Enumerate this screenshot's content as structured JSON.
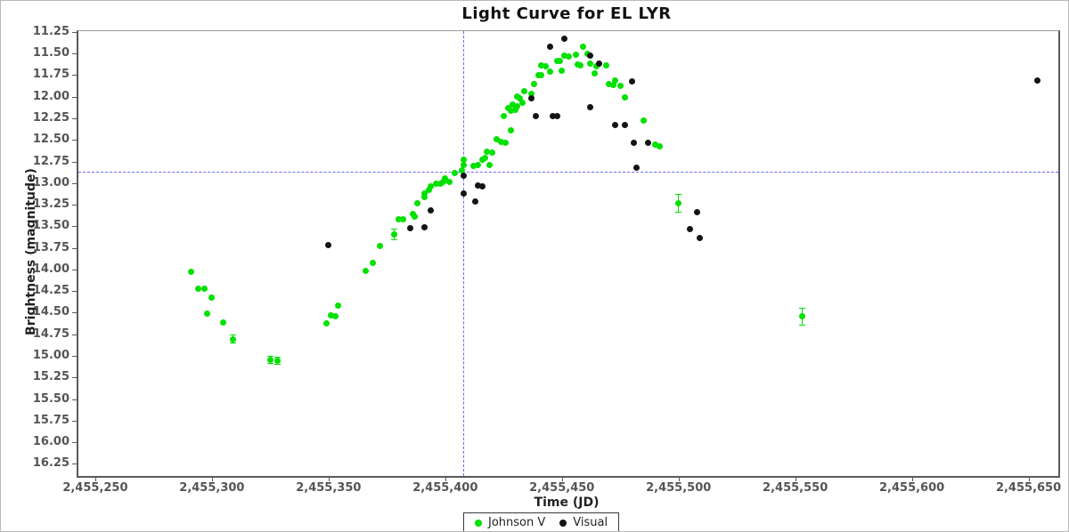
{
  "title": "Light Curve for EL LYR",
  "axes": {
    "x_label": "Time (JD)",
    "y_label": "Brightness (magnitude)"
  },
  "legend": {
    "items": [
      {
        "label": "Johnson V",
        "color": "#00e100",
        "marker": "circle-icon"
      },
      {
        "label": "Visual",
        "color": "#141414",
        "marker": "circle-icon"
      }
    ]
  },
  "crosshair": {
    "jd": 2455407,
    "mag": 12.86,
    "color": "#6a6aff"
  },
  "chart_data": {
    "type": "scatter",
    "title": "Light Curve for EL LYR",
    "xlabel": "Time (JD)",
    "ylabel": "Brightness (magnitude)",
    "x_range": [
      2455242,
      2455662
    ],
    "y_range": [
      11.23,
      16.38
    ],
    "y_axis_direction": "inverted (magnitude increases downward, brighter at top)",
    "grid": false,
    "legend_position": "bottom-center",
    "x_ticks": [
      {
        "v": 2455250,
        "label": "2,455,250"
      },
      {
        "v": 2455300,
        "label": "2,455,300"
      },
      {
        "v": 2455350,
        "label": "2,455,350"
      },
      {
        "v": 2455400,
        "label": "2,455,400"
      },
      {
        "v": 2455450,
        "label": "2,455,450"
      },
      {
        "v": 2455500,
        "label": "2,455,500"
      },
      {
        "v": 2455550,
        "label": "2,455,550"
      },
      {
        "v": 2455600,
        "label": "2,455,600"
      },
      {
        "v": 2455650,
        "label": "2,455,650"
      }
    ],
    "y_ticks": [
      {
        "v": 11.25,
        "label": "11.25"
      },
      {
        "v": 11.5,
        "label": "11.50"
      },
      {
        "v": 11.75,
        "label": "11.75"
      },
      {
        "v": 12.0,
        "label": "12.00"
      },
      {
        "v": 12.25,
        "label": "12.25"
      },
      {
        "v": 12.5,
        "label": "12.50"
      },
      {
        "v": 12.75,
        "label": "12.75"
      },
      {
        "v": 13.0,
        "label": "13.00"
      },
      {
        "v": 13.25,
        "label": "13.25"
      },
      {
        "v": 13.5,
        "label": "13.50"
      },
      {
        "v": 13.75,
        "label": "13.75"
      },
      {
        "v": 14.0,
        "label": "14.00"
      },
      {
        "v": 14.25,
        "label": "14.25"
      },
      {
        "v": 14.5,
        "label": "14.50"
      },
      {
        "v": 14.75,
        "label": "14.75"
      },
      {
        "v": 15.0,
        "label": "15.00"
      },
      {
        "v": 15.25,
        "label": "15.25"
      },
      {
        "v": 15.5,
        "label": "15.50"
      },
      {
        "v": 15.75,
        "label": "15.75"
      },
      {
        "v": 16.0,
        "label": "16.00"
      },
      {
        "v": 16.25,
        "label": "16.25"
      }
    ],
    "series": [
      {
        "name": "Johnson V",
        "color": "#00e100",
        "points": [
          [
            2455290,
            14.01
          ],
          [
            2455293,
            14.21
          ],
          [
            2455296,
            14.21
          ],
          [
            2455299,
            14.31
          ],
          [
            2455297,
            14.49
          ],
          [
            2455304,
            14.6
          ],
          [
            2455308,
            14.79,
            0.05
          ],
          [
            2455324,
            15.03,
            0.04
          ],
          [
            2455327,
            15.04,
            0.04
          ],
          [
            2455348,
            14.61
          ],
          [
            2455350,
            14.52
          ],
          [
            2455352,
            14.53
          ],
          [
            2455353,
            14.4
          ],
          [
            2455365,
            14.0
          ],
          [
            2455368,
            13.91
          ],
          [
            2455371,
            13.71
          ],
          [
            2455377,
            13.58,
            0.06
          ],
          [
            2455379,
            13.4
          ],
          [
            2455381,
            13.4
          ],
          [
            2455385,
            13.34
          ],
          [
            2455386,
            13.37
          ],
          [
            2455387,
            13.22
          ],
          [
            2455390,
            13.1
          ],
          [
            2455390,
            13.15
          ],
          [
            2455392,
            13.06
          ],
          [
            2455393,
            13.02
          ],
          [
            2455395,
            12.99
          ],
          [
            2455397,
            12.99
          ],
          [
            2455398,
            12.97
          ],
          [
            2455399,
            12.93
          ],
          [
            2455401,
            12.97
          ],
          [
            2455403,
            12.87
          ],
          [
            2455406,
            12.84
          ],
          [
            2455407,
            12.78
          ],
          [
            2455407,
            12.71
          ],
          [
            2455411,
            12.79
          ],
          [
            2455413,
            12.77
          ],
          [
            2455415,
            12.71
          ],
          [
            2455416,
            12.69
          ],
          [
            2455417,
            12.62
          ],
          [
            2455418,
            12.77
          ],
          [
            2455419,
            12.63
          ],
          [
            2455421,
            12.48
          ],
          [
            2455423,
            12.51
          ],
          [
            2455425,
            12.52
          ],
          [
            2455424,
            12.21
          ],
          [
            2455427,
            12.37
          ],
          [
            2455426,
            12.12
          ],
          [
            2455427,
            12.15
          ],
          [
            2455428,
            12.07
          ],
          [
            2455429,
            12.14
          ],
          [
            2455430,
            12.1
          ],
          [
            2455432,
            12.05
          ],
          [
            2455430,
            11.98
          ],
          [
            2455431,
            12.0
          ],
          [
            2455433,
            11.92
          ],
          [
            2455436,
            11.95
          ],
          [
            2455437,
            11.84
          ],
          [
            2455439,
            11.73
          ],
          [
            2455440,
            11.62
          ],
          [
            2455440,
            11.73
          ],
          [
            2455442,
            11.63
          ],
          [
            2455444,
            11.69
          ],
          [
            2455447,
            11.57
          ],
          [
            2455448,
            11.57
          ],
          [
            2455449,
            11.68
          ],
          [
            2455450,
            11.51
          ],
          [
            2455452,
            11.52
          ],
          [
            2455455,
            11.5
          ],
          [
            2455456,
            11.61
          ],
          [
            2455457,
            11.62
          ],
          [
            2455458,
            11.4
          ],
          [
            2455460,
            11.49
          ],
          [
            2455461,
            11.6
          ],
          [
            2455463,
            11.71
          ],
          [
            2455464,
            11.63
          ],
          [
            2455468,
            11.62
          ],
          [
            2455469,
            11.84
          ],
          [
            2455471,
            11.85
          ],
          [
            2455472,
            11.8
          ],
          [
            2455474,
            11.86
          ],
          [
            2455476,
            11.99
          ],
          [
            2455484,
            12.26
          ],
          [
            2455489,
            12.54
          ],
          [
            2455491,
            12.56
          ],
          [
            2455499,
            13.22,
            0.1
          ],
          [
            2455552,
            14.53,
            0.1
          ]
        ]
      },
      {
        "name": "Visual",
        "color": "#141414",
        "points": [
          [
            2455349,
            13.7
          ],
          [
            2455384,
            13.51
          ],
          [
            2455390,
            13.5
          ],
          [
            2455393,
            13.3
          ],
          [
            2455407,
            12.9
          ],
          [
            2455407,
            13.1
          ],
          [
            2455412,
            13.2
          ],
          [
            2455413,
            13.01
          ],
          [
            2455415,
            13.02
          ],
          [
            2455436,
            12.0
          ],
          [
            2455438,
            12.21
          ],
          [
            2455445,
            12.21
          ],
          [
            2455447,
            12.21
          ],
          [
            2455444,
            11.41
          ],
          [
            2455450,
            11.31
          ],
          [
            2455461,
            11.51
          ],
          [
            2455465,
            11.6
          ],
          [
            2455461,
            12.11
          ],
          [
            2455479,
            11.81
          ],
          [
            2455472,
            12.31
          ],
          [
            2455476,
            12.31
          ],
          [
            2455480,
            12.52
          ],
          [
            2455486,
            12.52
          ],
          [
            2455481,
            12.81
          ],
          [
            2455507,
            13.32
          ],
          [
            2455504,
            13.52
          ],
          [
            2455508,
            13.62
          ],
          [
            2455653,
            11.8
          ]
        ]
      }
    ]
  }
}
